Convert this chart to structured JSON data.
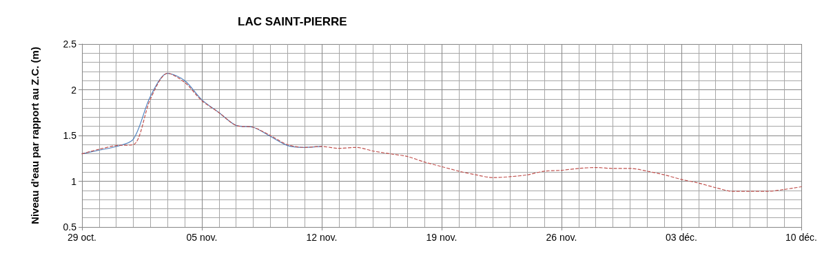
{
  "chart_data": {
    "type": "line",
    "title": "LAC SAINT-PIERRE",
    "ylabel": "Niveau d'eau par rapport au Z.C. (m)",
    "xlim": [
      "--10-29",
      "--12-10"
    ],
    "xticks": [
      {
        "value": "--10-29",
        "label": "29 oct."
      },
      {
        "value": "--11-05",
        "label": "05 nov."
      },
      {
        "value": "--11-12",
        "label": "12 nov."
      },
      {
        "value": "--11-19",
        "label": "19 nov."
      },
      {
        "value": "--11-26",
        "label": "26 nov."
      },
      {
        "value": "--12-03",
        "label": "03 déc."
      },
      {
        "value": "--12-10",
        "label": "10 déc."
      }
    ],
    "ylim": [
      0.5,
      2.5
    ],
    "yticks": [
      0.5,
      1,
      1.5,
      2,
      2.5
    ],
    "grid": true,
    "marker": "none",
    "series": [
      {
        "color": "#4f81bd",
        "line_style": "solid",
        "x": [
          "--10-29",
          "--10-30",
          "--10-31",
          "--11-01",
          "--11-02",
          "--11-03",
          "--11-04",
          "--11-05",
          "--11-06",
          "--11-07",
          "--11-08",
          "--11-09",
          "--11-10",
          "--11-11",
          "--11-12"
        ],
        "values": [
          1.3,
          1.34,
          1.38,
          1.46,
          1.93,
          2.18,
          2.1,
          1.89,
          1.75,
          1.61,
          1.59,
          1.49,
          1.39,
          1.37,
          1.38
        ]
      },
      {
        "color": "#c0504d",
        "line_style": "dashed",
        "x": [
          "--10-29",
          "--10-30",
          "--10-31",
          "--11-01",
          "--11-02",
          "--11-03",
          "--11-04",
          "--11-05",
          "--11-06",
          "--11-07",
          "--11-08",
          "--11-09",
          "--11-10",
          "--11-11",
          "--11-12",
          "--11-13",
          "--11-14",
          "--11-15",
          "--11-16",
          "--11-17",
          "--11-18",
          "--11-19",
          "--11-20",
          "--11-21",
          "--11-22",
          "--11-23",
          "--11-24",
          "--11-25",
          "--11-26",
          "--11-27",
          "--11-28",
          "--11-29",
          "--11-30",
          "--12-01",
          "--12-02",
          "--12-03",
          "--12-04",
          "--12-05",
          "--12-06",
          "--12-07",
          "--12-08",
          "--12-09",
          "--12-10"
        ],
        "values": [
          1.3,
          1.35,
          1.39,
          1.4,
          1.9,
          2.18,
          2.08,
          1.88,
          1.75,
          1.61,
          1.59,
          1.5,
          1.4,
          1.37,
          1.38,
          1.36,
          1.37,
          1.33,
          1.3,
          1.27,
          1.21,
          1.16,
          1.11,
          1.07,
          1.04,
          1.05,
          1.07,
          1.11,
          1.12,
          1.14,
          1.15,
          1.14,
          1.14,
          1.11,
          1.07,
          1.02,
          0.98,
          0.93,
          0.89,
          0.89,
          0.89,
          0.91,
          0.94
        ]
      }
    ]
  }
}
